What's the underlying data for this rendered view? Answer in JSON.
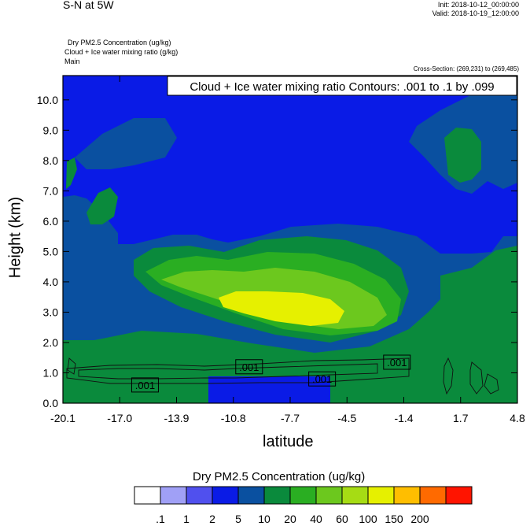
{
  "header": {
    "left_title": "S-N at 5W",
    "init": "Init: 2018-10-12_00:00:00",
    "valid": "Valid: 2018-10-19_12:00:00",
    "fields": [
      "Dry PM2.5 Concentration   (ug/kg)",
      "Cloud + Ice water mixing ratio   (g/kg)",
      "Main"
    ],
    "cross_section": "Cross-Section: (269,231) to (269,485)"
  },
  "chart_data": {
    "type": "heatmap",
    "xlabel": "latitude",
    "ylabel": "Height (km)",
    "x_ticks": [
      "-20.1",
      "-17.0",
      "-13.9",
      "-10.8",
      "-7.7",
      "-4.5",
      "-1.4",
      "1.7",
      "4.8"
    ],
    "y_ticks": [
      "0.0",
      "1.0",
      "2.0",
      "3.0",
      "4.0",
      "5.0",
      "6.0",
      "7.0",
      "8.0",
      "9.0",
      "10.0"
    ],
    "xlim": [
      -20.1,
      4.8
    ],
    "ylim": [
      0,
      10.8
    ],
    "contour_title": "Cloud + Ice water mixing ratio Contours: .001 to .1 by .099",
    "contour_labels": [
      {
        "text": ".001",
        "lat": -15.6,
        "height": 0.6
      },
      {
        "text": ".001",
        "lat": -9.9,
        "height": 1.2
      },
      {
        "text": ".001",
        "lat": -5.9,
        "height": 0.8
      },
      {
        "text": ".001",
        "lat": -1.8,
        "height": 1.35
      }
    ],
    "colorbar": {
      "title": "Dry PM2.5 Concentration  (ug/kg)",
      "levels": [
        ".1",
        "1",
        "2",
        "5",
        "10",
        "20",
        "40",
        "60",
        "100",
        "150",
        "200"
      ],
      "colors": [
        "#ffffff",
        "#a0a0f6",
        "#5050ee",
        "#0a1be6",
        "#0a50a0",
        "#0a8a3c",
        "#2aae22",
        "#6cc81e",
        "#a6dc14",
        "#e6f000",
        "#ffbe00",
        "#ff6a00",
        "#ff1400"
      ]
    }
  }
}
